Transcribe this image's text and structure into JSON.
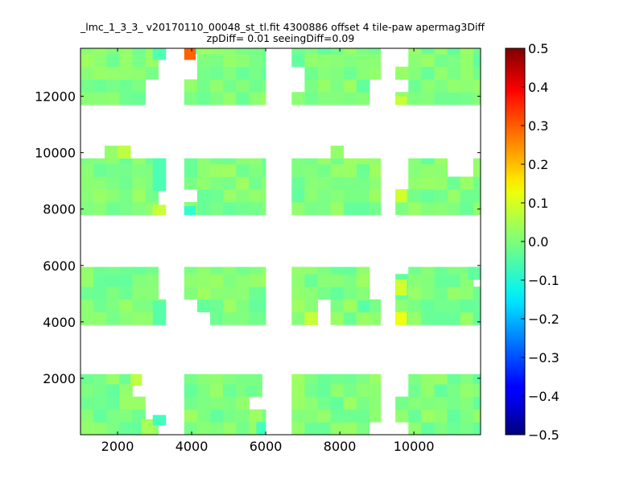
{
  "chart_data": {
    "type": "heatmap",
    "title_line1": "_lmc_1_3_3_ v20170110_00048_st_tl.fit 4300886 offset 4 tile-paw apermag3Diff",
    "title_line2": "zpDiff= 0.01 seeingDiff=0.09",
    "xlim": [
      1000,
      11800
    ],
    "ylim": [
      0,
      13700
    ],
    "x_ticks": [
      2000,
      4000,
      6000,
      8000,
      10000
    ],
    "y_ticks": [
      2000,
      4000,
      6000,
      8000,
      10000,
      12000
    ],
    "colorbar": {
      "vmin": -0.5,
      "vmax": 0.5,
      "ticks": [
        -0.5,
        -0.4,
        -0.3,
        -0.2,
        -0.1,
        0.0,
        0.1,
        0.2,
        0.3,
        0.4,
        0.5
      ],
      "tick_labels": [
        "−0.5",
        "−0.4",
        "−0.3",
        "−0.2",
        "−0.1",
        "0.0",
        "0.1",
        "0.2",
        "0.3",
        "0.4",
        "0.5"
      ],
      "colormap": "jet"
    },
    "cell_size": [
      350,
      450
    ],
    "default_value": 0.0,
    "detectors": [
      {
        "x0": 1000,
        "x1": 3300,
        "y0": 11700,
        "y1": 13700
      },
      {
        "x0": 3800,
        "x1": 6000,
        "y0": 11700,
        "y1": 13700
      },
      {
        "x0": 6700,
        "x1": 9100,
        "y0": 11700,
        "y1": 13700
      },
      {
        "x0": 9500,
        "x1": 11800,
        "y0": 11700,
        "y1": 13700
      },
      {
        "x0": 1000,
        "x1": 3300,
        "y0": 7800,
        "y1": 9800
      },
      {
        "x0": 3800,
        "x1": 6000,
        "y0": 7800,
        "y1": 9800
      },
      {
        "x0": 6700,
        "x1": 9100,
        "y0": 7800,
        "y1": 9800
      },
      {
        "x0": 9500,
        "x1": 11800,
        "y0": 7800,
        "y1": 9800
      },
      {
        "x0": 1000,
        "x1": 3300,
        "y0": 3900,
        "y1": 5950
      },
      {
        "x0": 3800,
        "x1": 6000,
        "y0": 3900,
        "y1": 5950
      },
      {
        "x0": 6700,
        "x1": 9100,
        "y0": 3900,
        "y1": 5950
      },
      {
        "x0": 9500,
        "x1": 11800,
        "y0": 3900,
        "y1": 5950
      },
      {
        "x0": 1000,
        "x1": 3300,
        "y0": 0,
        "y1": 2150
      },
      {
        "x0": 3800,
        "x1": 6000,
        "y0": 0,
        "y1": 2150
      },
      {
        "x0": 6700,
        "x1": 9100,
        "y0": 0,
        "y1": 2150
      },
      {
        "x0": 9500,
        "x1": 11800,
        "y0": 0,
        "y1": 2150
      }
    ],
    "extra_cells": [
      {
        "x0": 1650,
        "x1": 2000,
        "y0": 9800,
        "y1": 10250,
        "v": 0.02
      },
      {
        "x0": 2000,
        "x1": 2350,
        "y0": 9800,
        "y1": 10250,
        "v": 0.06
      },
      {
        "x0": 7750,
        "x1": 8100,
        "y0": 9800,
        "y1": 10250,
        "v": 0.02
      }
    ],
    "blank_cells": [
      {
        "x0": 2950,
        "x1": 3300,
        "y0": 12500,
        "y1": 13300
      },
      {
        "x0": 2650,
        "x1": 3300,
        "y0": 11700,
        "y1": 12500
      },
      {
        "x0": 3800,
        "x1": 4100,
        "y0": 12500,
        "y1": 13300
      },
      {
        "x0": 6700,
        "x1": 7050,
        "y0": 12200,
        "y1": 12900
      },
      {
        "x0": 8800,
        "x1": 9100,
        "y0": 11700,
        "y1": 12600
      },
      {
        "x0": 9500,
        "x1": 10000,
        "y0": 12900,
        "y1": 13700
      },
      {
        "x0": 9500,
        "x1": 9800,
        "y0": 12000,
        "y1": 12600
      },
      {
        "x0": 2950,
        "x1": 3300,
        "y0": 7800,
        "y1": 8650
      },
      {
        "x0": 3800,
        "x1": 4100,
        "y0": 8100,
        "y1": 8650
      },
      {
        "x0": 9500,
        "x1": 9800,
        "y0": 8700,
        "y1": 9800
      },
      {
        "x0": 11050,
        "x1": 11450,
        "y0": 9350,
        "y1": 9800
      },
      {
        "x0": 8800,
        "x1": 9100,
        "y0": 4750,
        "y1": 5950
      },
      {
        "x0": 9500,
        "x1": 9800,
        "y0": 5500,
        "y1": 5950
      },
      {
        "x0": 11450,
        "x1": 11800,
        "y0": 5050,
        "y1": 5500
      },
      {
        "x0": 2950,
        "x1": 3300,
        "y0": 4750,
        "y1": 5950
      },
      {
        "x0": 3800,
        "x1": 4100,
        "y0": 3900,
        "y1": 4750
      },
      {
        "x0": 4100,
        "x1": 4400,
        "y0": 3900,
        "y1": 4350
      },
      {
        "x0": 7400,
        "x1": 7750,
        "y0": 3900,
        "y1": 4750
      },
      {
        "x0": 9500,
        "x1": 9800,
        "y0": 4600,
        "y1": 4950
      },
      {
        "x0": 2350,
        "x1": 3300,
        "y0": 1250,
        "y1": 2150
      },
      {
        "x0": 2650,
        "x1": 3300,
        "y0": 550,
        "y1": 1250
      },
      {
        "x0": 2950,
        "x1": 3300,
        "y0": 0,
        "y1": 550
      },
      {
        "x0": 5450,
        "x1": 5750,
        "y0": 1000,
        "y1": 1400
      },
      {
        "x0": 5750,
        "x1": 6000,
        "y0": 1000,
        "y1": 2150
      },
      {
        "x0": 5750,
        "x1": 6000,
        "y0": 0,
        "y1": 450
      },
      {
        "x0": 8800,
        "x1": 9100,
        "y0": 0,
        "y1": 550
      },
      {
        "x0": 9500,
        "x1": 9800,
        "y0": 1400,
        "y1": 2150
      },
      {
        "x0": 9500,
        "x1": 9800,
        "y0": 0,
        "y1": 450
      }
    ],
    "highlight_cells": [
      {
        "x0": 3800,
        "x1": 4100,
        "y0": 13300,
        "y1": 13700,
        "v": 0.28
      },
      {
        "x0": 2950,
        "x1": 3300,
        "y0": 13300,
        "y1": 13700,
        "v": -0.05
      },
      {
        "x0": 3800,
        "x1": 4100,
        "y0": 7800,
        "y1": 8100,
        "v": -0.08
      },
      {
        "x0": 9500,
        "x1": 9800,
        "y0": 11700,
        "y1": 12000,
        "v": 0.07
      },
      {
        "x0": 9500,
        "x1": 9800,
        "y0": 8250,
        "y1": 8700,
        "v": 0.08
      },
      {
        "x0": 9500,
        "x1": 9800,
        "y0": 4950,
        "y1": 5500,
        "v": 0.08
      },
      {
        "x0": 9500,
        "x1": 9800,
        "y0": 3900,
        "y1": 4350,
        "v": 0.11
      },
      {
        "x0": 7050,
        "x1": 7400,
        "y0": 3900,
        "y1": 4350,
        "v": 0.07
      },
      {
        "x0": 2950,
        "x1": 3300,
        "y0": 3900,
        "y1": 4750,
        "v": -0.04
      },
      {
        "x0": 2950,
        "x1": 3300,
        "y0": 8650,
        "y1": 9800,
        "v": -0.05
      },
      {
        "x0": 2950,
        "x1": 3300,
        "y0": 7800,
        "y1": 8150,
        "v": 0.07
      },
      {
        "x0": 2650,
        "x1": 2950,
        "y0": 0,
        "y1": 550,
        "v": 0.04
      },
      {
        "x0": 2950,
        "x1": 3300,
        "y0": 350,
        "y1": 700,
        "v": -0.06
      },
      {
        "x0": 5750,
        "x1": 6000,
        "y0": 0,
        "y1": 450,
        "v": -0.06
      },
      {
        "x0": 5450,
        "x1": 5750,
        "y0": 1400,
        "y1": 1750,
        "v": -0.02
      },
      {
        "x0": 2350,
        "x1": 2650,
        "y0": 1750,
        "y1": 2150,
        "v": 0.06
      },
      {
        "x0": 8500,
        "x1": 8800,
        "y0": 4350,
        "y1": 4750,
        "v": -0.04
      },
      {
        "x0": 11450,
        "x1": 11800,
        "y0": 5500,
        "y1": 5950,
        "v": -0.03
      },
      {
        "x0": 9500,
        "x1": 9800,
        "y0": 12600,
        "y1": 12900,
        "v": 0.02
      }
    ]
  }
}
